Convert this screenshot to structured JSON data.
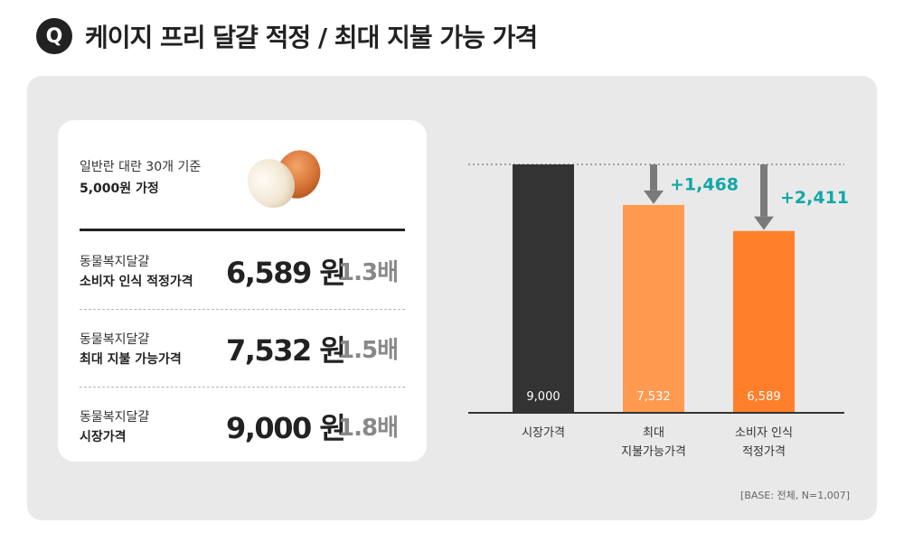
{
  "header": {
    "badge": "Q",
    "title": "케이지 프리 달걀 적정 / 최대 지불 가능 가격"
  },
  "card": {
    "intro_line1": "일반란 대란 30개 기준",
    "intro_line2": "5,000원 가정",
    "egg_icon": "egg-icon",
    "rows": [
      {
        "label_line1": "동물복지달걀",
        "label_line2": "소비자 인식 적정가격",
        "price": "6,589 원",
        "multiplier": "1.3배"
      },
      {
        "label_line1": "동물복지달걀",
        "label_line2": "최대 지불 가능가격",
        "price": "7,532 원",
        "multiplier": "1.5배"
      },
      {
        "label_line1": "동물복지달걀",
        "label_line2": "시장가격",
        "price": "9,000 원",
        "multiplier": "1.8배"
      }
    ]
  },
  "chart_data": {
    "type": "bar",
    "categories": [
      [
        "시장가격"
      ],
      [
        "최대",
        "지불가능가격"
      ],
      [
        "소비자 인식",
        "적정가격"
      ]
    ],
    "values": [
      9000,
      7532,
      6589
    ],
    "value_labels": [
      "9,000",
      "7,532",
      "6,589"
    ],
    "annotations": [
      {
        "category_index": 1,
        "text": "+1,468"
      },
      {
        "category_index": 2,
        "text": "+2,411"
      }
    ],
    "reference_line": 9000,
    "ylim": [
      0,
      9000
    ],
    "grid": false,
    "colors": {
      "bar": [
        "#333333",
        "#ff9a50",
        "#ff7f2a"
      ],
      "annotation": "#12a7a8",
      "arrow": "#7a7a7a",
      "reference_line": "#888888",
      "axis": "#333333"
    }
  },
  "footnote": "[BASE: 전체, N=1,007]",
  "colors": {
    "panel": "#e9e9e9",
    "card": "#ffffff",
    "text": "#222222",
    "multiplier": "#888888"
  }
}
